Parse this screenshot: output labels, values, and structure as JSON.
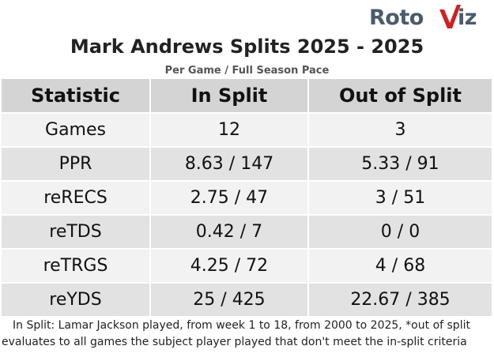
{
  "logo": {
    "text_left": "Roto",
    "text_right": "iz",
    "brand_color": "#4d5a6b",
    "accent_color": "#cc2222",
    "icon": "checkmark-v-icon"
  },
  "title": "Mark Andrews Splits 2025 - 2025",
  "subtitle": "Per Game / Full Season Pace",
  "table": {
    "headers": [
      "Statistic",
      "In Split",
      "Out of Split"
    ],
    "rows": [
      [
        "Games",
        "12",
        "3"
      ],
      [
        "PPR",
        "8.63 / 147",
        "5.33 / 91"
      ],
      [
        "reRECS",
        "2.75 / 47",
        "3 / 51"
      ],
      [
        "reTDS",
        "0.42 / 7",
        "0 / 0"
      ],
      [
        "reTRGS",
        "4.25 / 72",
        "4 / 68"
      ],
      [
        "reYDS",
        "25 / 425",
        "22.67 / 385"
      ]
    ]
  },
  "footnote": "In Split: Lamar Jackson played, from week 1 to 18, from 2000 to 2025,   *out of split evaluates to all games the subject player played that don't meet the in-split criteria"
}
